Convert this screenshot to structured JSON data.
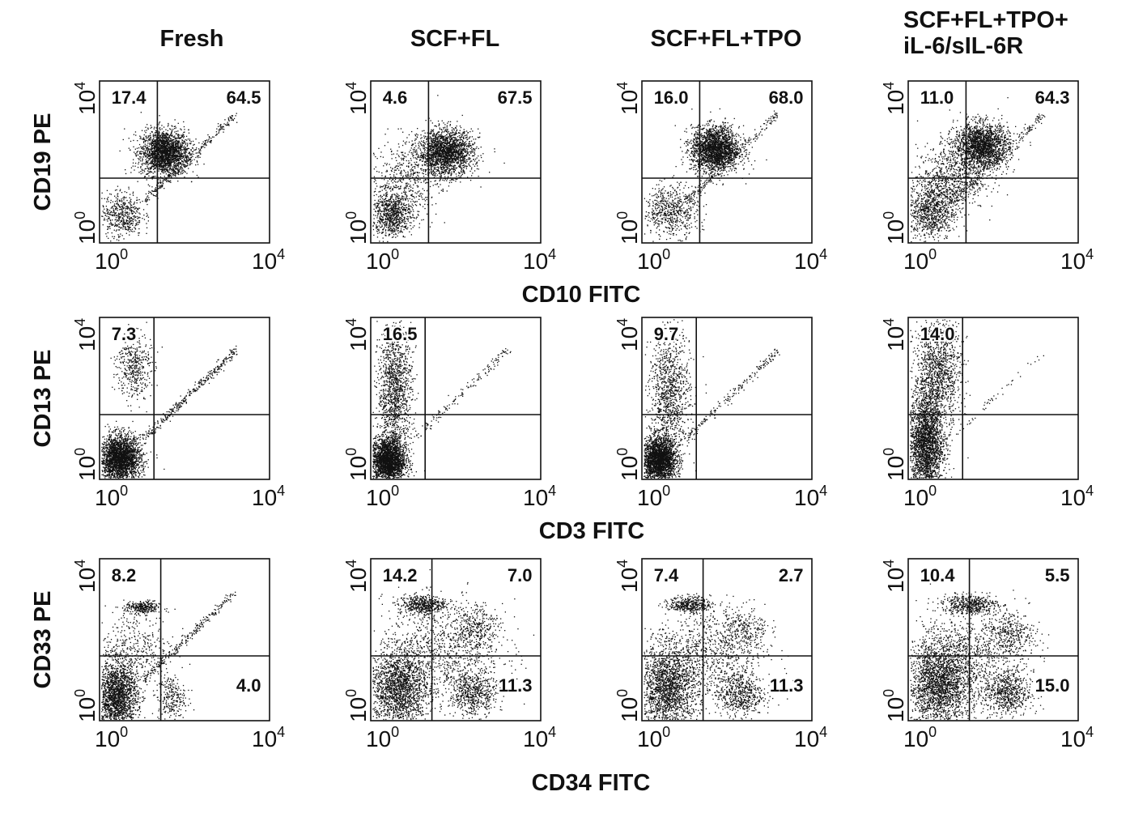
{
  "columns": [
    "Fresh",
    "SCF+FL",
    "SCF+FL+TPO",
    "SCF+FL+TPO+\niL-6/sIL-6R"
  ],
  "rows": [
    {
      "ylabel": "CD19 PE",
      "xlabel": "CD10 FITC"
    },
    {
      "ylabel": "CD13 PE",
      "xlabel": "CD3 FITC"
    },
    {
      "ylabel": "CD33 PE",
      "xlabel": "CD34 FITC"
    }
  ],
  "ticks": {
    "low": "10",
    "low_exp": "0",
    "high": "10",
    "high_exp": "4"
  },
  "chart_data": [
    {
      "type": "scatter",
      "row": 0,
      "col": 0,
      "title": "Fresh",
      "xlabel": "CD10 FITC",
      "ylabel": "CD19 PE",
      "xlim": [
        1,
        10000
      ],
      "ylim": [
        1,
        10000
      ],
      "scale": "log",
      "quadrants": {
        "upper_left": "17.4",
        "upper_right": "64.5"
      }
    },
    {
      "type": "scatter",
      "row": 0,
      "col": 1,
      "title": "SCF+FL",
      "xlabel": "CD10 FITC",
      "ylabel": "CD19 PE",
      "xlim": [
        1,
        10000
      ],
      "ylim": [
        1,
        10000
      ],
      "scale": "log",
      "quadrants": {
        "upper_left": "4.6",
        "upper_right": "67.5"
      }
    },
    {
      "type": "scatter",
      "row": 0,
      "col": 2,
      "title": "SCF+FL+TPO",
      "xlabel": "CD10 FITC",
      "ylabel": "CD19 PE",
      "xlim": [
        1,
        10000
      ],
      "ylim": [
        1,
        10000
      ],
      "scale": "log",
      "quadrants": {
        "upper_left": "16.0",
        "upper_right": "68.0"
      }
    },
    {
      "type": "scatter",
      "row": 0,
      "col": 3,
      "title": "SCF+FL+TPO+iL-6/sIL-6R",
      "xlabel": "CD10 FITC",
      "ylabel": "CD19 PE",
      "xlim": [
        1,
        10000
      ],
      "ylim": [
        1,
        10000
      ],
      "scale": "log",
      "quadrants": {
        "upper_left": "11.0",
        "upper_right": "64.3"
      }
    },
    {
      "type": "scatter",
      "row": 1,
      "col": 0,
      "title": "Fresh",
      "xlabel": "CD3 FITC",
      "ylabel": "CD13 PE",
      "xlim": [
        1,
        10000
      ],
      "ylim": [
        1,
        10000
      ],
      "scale": "log",
      "quadrants": {
        "upper_left": "7.3"
      }
    },
    {
      "type": "scatter",
      "row": 1,
      "col": 1,
      "title": "SCF+FL",
      "xlabel": "CD3 FITC",
      "ylabel": "CD13 PE",
      "xlim": [
        1,
        10000
      ],
      "ylim": [
        1,
        10000
      ],
      "scale": "log",
      "quadrants": {
        "upper_left": "16.5"
      }
    },
    {
      "type": "scatter",
      "row": 1,
      "col": 2,
      "title": "SCF+FL+TPO",
      "xlabel": "CD3 FITC",
      "ylabel": "CD13 PE",
      "xlim": [
        1,
        10000
      ],
      "ylim": [
        1,
        10000
      ],
      "scale": "log",
      "quadrants": {
        "upper_left": "9.7"
      }
    },
    {
      "type": "scatter",
      "row": 1,
      "col": 3,
      "title": "SCF+FL+TPO+iL-6/sIL-6R",
      "xlabel": "CD3 FITC",
      "ylabel": "CD13 PE",
      "xlim": [
        1,
        10000
      ],
      "ylim": [
        1,
        10000
      ],
      "scale": "log",
      "quadrants": {
        "upper_left": "14.0"
      }
    },
    {
      "type": "scatter",
      "row": 2,
      "col": 0,
      "title": "Fresh",
      "xlabel": "CD34 FITC",
      "ylabel": "CD33 PE",
      "xlim": [
        1,
        10000
      ],
      "ylim": [
        1,
        10000
      ],
      "scale": "log",
      "quadrants": {
        "upper_left": "8.2",
        "lower_right": "4.0"
      }
    },
    {
      "type": "scatter",
      "row": 2,
      "col": 1,
      "title": "SCF+FL",
      "xlabel": "CD34 FITC",
      "ylabel": "CD33 PE",
      "xlim": [
        1,
        10000
      ],
      "ylim": [
        1,
        10000
      ],
      "scale": "log",
      "quadrants": {
        "upper_left": "14.2",
        "upper_right": "7.0",
        "lower_right": "11.3"
      }
    },
    {
      "type": "scatter",
      "row": 2,
      "col": 2,
      "title": "SCF+FL+TPO",
      "xlabel": "CD34 FITC",
      "ylabel": "CD33 PE",
      "xlim": [
        1,
        10000
      ],
      "ylim": [
        1,
        10000
      ],
      "scale": "log",
      "quadrants": {
        "upper_left": "7.4",
        "upper_right": "2.7",
        "lower_right": "11.3"
      }
    },
    {
      "type": "scatter",
      "row": 2,
      "col": 3,
      "title": "SCF+FL+TPO+iL-6/sIL-6R",
      "xlabel": "CD34 FITC",
      "ylabel": "CD33 PE",
      "xlim": [
        1,
        10000
      ],
      "ylim": [
        1,
        10000
      ],
      "scale": "log",
      "quadrants": {
        "upper_left": "10.4",
        "upper_right": "5.5",
        "lower_right": "15.0"
      }
    }
  ]
}
